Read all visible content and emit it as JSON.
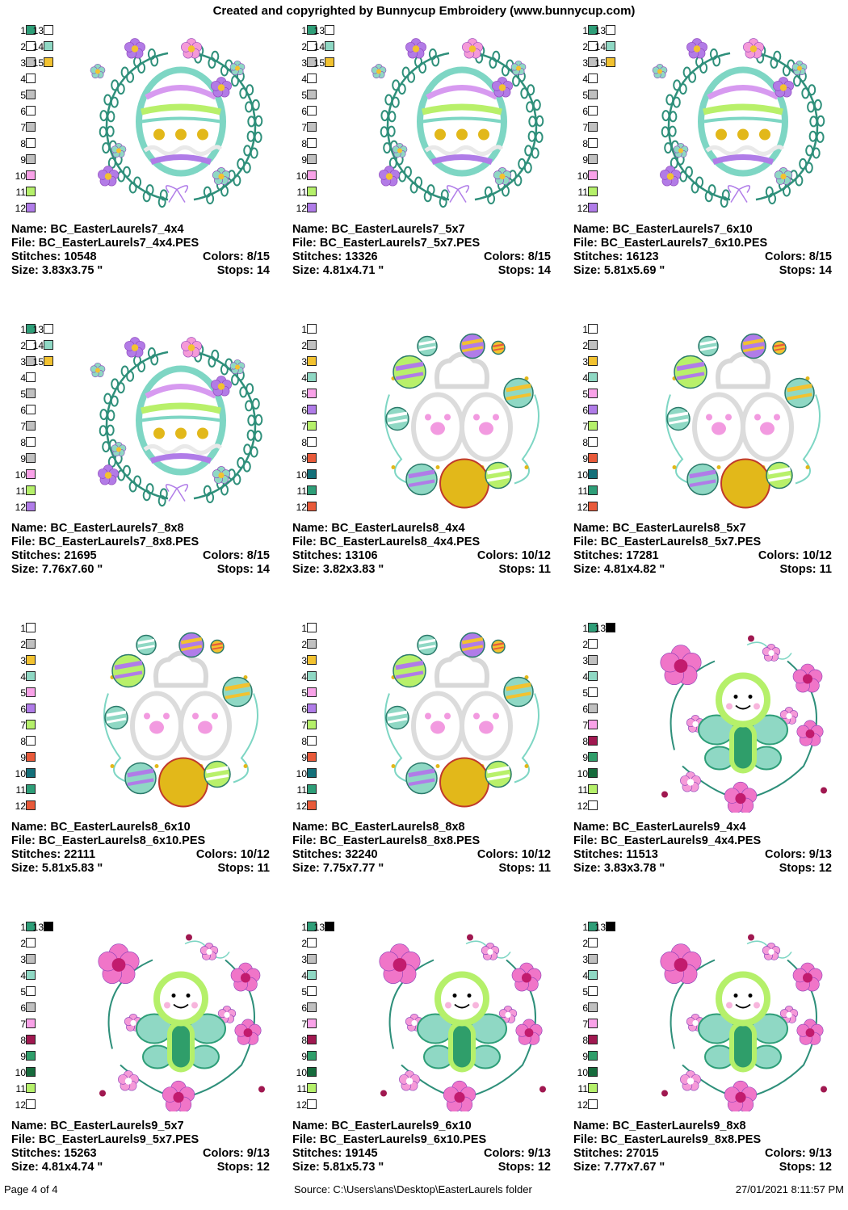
{
  "header": "Created and copyrighted by Bunnycup Embroidery (www.bunnycup.com)",
  "footer": {
    "page": "Page 4 of 4",
    "source": "Source: C:\\Users\\ans\\Desktop\\EasterLaurels folder",
    "datetime": "27/01/2021 8:11:57 PM"
  },
  "labels": {
    "name": "Name:",
    "file": "File:",
    "stitches": "Stitches:",
    "size": "Size:",
    "colors": "Colors:",
    "stops": "Stops:"
  },
  "colors": {
    "teal": "#2e9e78",
    "white": "#ffffff",
    "gray": "#c0c0c0",
    "mint": "#8fd8c4",
    "gold": "#f2c230",
    "pink": "#f9a2e8",
    "purple": "#b07ce8",
    "lime": "#b5f06a",
    "red": "#e85a3a",
    "darkteal": "#14707a",
    "green": "#2f9e6a",
    "crimson": "#a01850",
    "darkgreen": "#166b3c",
    "black": "#000000"
  },
  "designs": [
    {
      "motif": "egg",
      "name": "BC_EasterLaurels7_4x4",
      "file": "BC_EasterLaurels7_4x4.PES",
      "stitches": "10548",
      "colors": "8/15",
      "size": "3.83x3.75 \"",
      "stops": "14",
      "swatches": [
        "1",
        "2",
        "3",
        "4",
        "5",
        "6",
        "7",
        "8",
        "9",
        "10",
        "11",
        "12",
        "13",
        "14",
        "15"
      ],
      "swatch_colors": [
        "#2e9e78",
        "#ffffff",
        "#c0c0c0",
        "#ffffff",
        "#c0c0c0",
        "#ffffff",
        "#c0c0c0",
        "#ffffff",
        "#c0c0c0",
        "#f9a2e8",
        "#b5f06a",
        "#b07ce8",
        "#ffffff",
        "#8fd8c4",
        "#f2c230"
      ]
    },
    {
      "motif": "egg",
      "name": "BC_EasterLaurels7_5x7",
      "file": "BC_EasterLaurels7_5x7.PES",
      "stitches": "13326",
      "colors": "8/15",
      "size": "4.81x4.71 \"",
      "stops": "14",
      "swatches": [
        "1",
        "2",
        "3",
        "4",
        "5",
        "6",
        "7",
        "8",
        "9",
        "10",
        "11",
        "12",
        "13",
        "14",
        "15"
      ],
      "swatch_colors": [
        "#2e9e78",
        "#ffffff",
        "#c0c0c0",
        "#ffffff",
        "#c0c0c0",
        "#ffffff",
        "#c0c0c0",
        "#ffffff",
        "#c0c0c0",
        "#f9a2e8",
        "#b5f06a",
        "#b07ce8",
        "#ffffff",
        "#8fd8c4",
        "#f2c230"
      ]
    },
    {
      "motif": "egg",
      "name": "BC_EasterLaurels7_6x10",
      "file": "BC_EasterLaurels7_6x10.PES",
      "stitches": "16123",
      "colors": "8/15",
      "size": "5.81x5.69 \"",
      "stops": "14",
      "swatches": [
        "1",
        "2",
        "3",
        "4",
        "5",
        "6",
        "7",
        "8",
        "9",
        "10",
        "11",
        "12",
        "13",
        "14",
        "15"
      ],
      "swatch_colors": [
        "#2e9e78",
        "#ffffff",
        "#c0c0c0",
        "#ffffff",
        "#c0c0c0",
        "#ffffff",
        "#c0c0c0",
        "#ffffff",
        "#c0c0c0",
        "#f9a2e8",
        "#b5f06a",
        "#b07ce8",
        "#ffffff",
        "#8fd8c4",
        "#f2c230"
      ]
    },
    {
      "motif": "egg",
      "name": "BC_EasterLaurels7_8x8",
      "file": "BC_EasterLaurels7_8x8.PES",
      "stitches": "21695",
      "colors": "8/15",
      "size": "7.76x7.60 \"",
      "stops": "14",
      "swatches": [
        "1",
        "2",
        "3",
        "4",
        "5",
        "6",
        "7",
        "8",
        "9",
        "10",
        "11",
        "12",
        "13",
        "14",
        "15"
      ],
      "swatch_colors": [
        "#2e9e78",
        "#ffffff",
        "#c0c0c0",
        "#ffffff",
        "#c0c0c0",
        "#ffffff",
        "#c0c0c0",
        "#ffffff",
        "#c0c0c0",
        "#f9a2e8",
        "#b5f06a",
        "#b07ce8",
        "#ffffff",
        "#8fd8c4",
        "#f2c230"
      ]
    },
    {
      "motif": "bunny",
      "name": "BC_EasterLaurels8_4x4",
      "file": "BC_EasterLaurels8_4x4.PES",
      "stitches": "13106",
      "colors": "10/12",
      "size": "3.82x3.83 \"",
      "stops": "11",
      "swatches": [
        "1",
        "2",
        "3",
        "4",
        "5",
        "6",
        "7",
        "8",
        "9",
        "10",
        "11",
        "12"
      ],
      "swatch_colors": [
        "#ffffff",
        "#c0c0c0",
        "#f2c230",
        "#8fd8c4",
        "#f9a2e8",
        "#b07ce8",
        "#b5f06a",
        "#ffffff",
        "#e85a3a",
        "#14707a",
        "#2e9e78",
        "#e85a3a"
      ]
    },
    {
      "motif": "bunny",
      "name": "BC_EasterLaurels8_5x7",
      "file": "BC_EasterLaurels8_5x7.PES",
      "stitches": "17281",
      "colors": "10/12",
      "size": "4.81x4.82 \"",
      "stops": "11",
      "swatches": [
        "1",
        "2",
        "3",
        "4",
        "5",
        "6",
        "7",
        "8",
        "9",
        "10",
        "11",
        "12"
      ],
      "swatch_colors": [
        "#ffffff",
        "#c0c0c0",
        "#f2c230",
        "#8fd8c4",
        "#f9a2e8",
        "#b07ce8",
        "#b5f06a",
        "#ffffff",
        "#e85a3a",
        "#14707a",
        "#2e9e78",
        "#e85a3a"
      ]
    },
    {
      "motif": "bunny",
      "name": "BC_EasterLaurels8_6x10",
      "file": "BC_EasterLaurels8_6x10.PES",
      "stitches": "22111",
      "colors": "10/12",
      "size": "5.81x5.83 \"",
      "stops": "11",
      "swatches": [
        "1",
        "2",
        "3",
        "4",
        "5",
        "6",
        "7",
        "8",
        "9",
        "10",
        "11",
        "12"
      ],
      "swatch_colors": [
        "#ffffff",
        "#c0c0c0",
        "#f2c230",
        "#8fd8c4",
        "#f9a2e8",
        "#b07ce8",
        "#b5f06a",
        "#ffffff",
        "#e85a3a",
        "#14707a",
        "#2e9e78",
        "#e85a3a"
      ]
    },
    {
      "motif": "bunny",
      "name": "BC_EasterLaurels8_8x8",
      "file": "BC_EasterLaurels8_8x8.PES",
      "stitches": "32240",
      "colors": "10/12",
      "size": "7.75x7.77 \"",
      "stops": "11",
      "swatches": [
        "1",
        "2",
        "3",
        "4",
        "5",
        "6",
        "7",
        "8",
        "9",
        "10",
        "11",
        "12"
      ],
      "swatch_colors": [
        "#ffffff",
        "#c0c0c0",
        "#f2c230",
        "#8fd8c4",
        "#f9a2e8",
        "#b07ce8",
        "#b5f06a",
        "#ffffff",
        "#e85a3a",
        "#14707a",
        "#2e9e78",
        "#e85a3a"
      ]
    },
    {
      "motif": "bug",
      "name": "BC_EasterLaurels9_4x4",
      "file": "BC_EasterLaurels9_4x4.PES",
      "stitches": "11513",
      "colors": "9/13",
      "size": "3.83x3.78 \"",
      "stops": "12",
      "swatches": [
        "1",
        "2",
        "3",
        "4",
        "5",
        "6",
        "7",
        "8",
        "9",
        "10",
        "11",
        "12",
        "13"
      ],
      "swatch_colors": [
        "#2e9e78",
        "#ffffff",
        "#c0c0c0",
        "#8fd8c4",
        "#ffffff",
        "#c0c0c0",
        "#f9a2e8",
        "#a01850",
        "#2f9e6a",
        "#166b3c",
        "#b5f06a",
        "#ffffff",
        "#000000"
      ]
    },
    {
      "motif": "bug",
      "name": "BC_EasterLaurels9_5x7",
      "file": "BC_EasterLaurels9_5x7.PES",
      "stitches": "15263",
      "colors": "9/13",
      "size": "4.81x4.74 \"",
      "stops": "12",
      "swatches": [
        "1",
        "2",
        "3",
        "4",
        "5",
        "6",
        "7",
        "8",
        "9",
        "10",
        "11",
        "12",
        "13"
      ],
      "swatch_colors": [
        "#2e9e78",
        "#ffffff",
        "#c0c0c0",
        "#8fd8c4",
        "#ffffff",
        "#c0c0c0",
        "#f9a2e8",
        "#a01850",
        "#2f9e6a",
        "#166b3c",
        "#b5f06a",
        "#ffffff",
        "#000000"
      ]
    },
    {
      "motif": "bug",
      "name": "BC_EasterLaurels9_6x10",
      "file": "BC_EasterLaurels9_6x10.PES",
      "stitches": "19145",
      "colors": "9/13",
      "size": "5.81x5.73 \"",
      "stops": "12",
      "swatches": [
        "1",
        "2",
        "3",
        "4",
        "5",
        "6",
        "7",
        "8",
        "9",
        "10",
        "11",
        "12",
        "13"
      ],
      "swatch_colors": [
        "#2e9e78",
        "#ffffff",
        "#c0c0c0",
        "#8fd8c4",
        "#ffffff",
        "#c0c0c0",
        "#f9a2e8",
        "#a01850",
        "#2f9e6a",
        "#166b3c",
        "#b5f06a",
        "#ffffff",
        "#000000"
      ]
    },
    {
      "motif": "bug",
      "name": "BC_EasterLaurels9_8x8",
      "file": "BC_EasterLaurels9_8x8.PES",
      "stitches": "27015",
      "colors": "9/13",
      "size": "7.77x7.67 \"",
      "stops": "12",
      "swatches": [
        "1",
        "2",
        "3",
        "4",
        "5",
        "6",
        "7",
        "8",
        "9",
        "10",
        "11",
        "12",
        "13"
      ],
      "swatch_colors": [
        "#2e9e78",
        "#ffffff",
        "#c0c0c0",
        "#8fd8c4",
        "#ffffff",
        "#c0c0c0",
        "#f9a2e8",
        "#a01850",
        "#2f9e6a",
        "#166b3c",
        "#b5f06a",
        "#ffffff",
        "#000000"
      ]
    }
  ]
}
